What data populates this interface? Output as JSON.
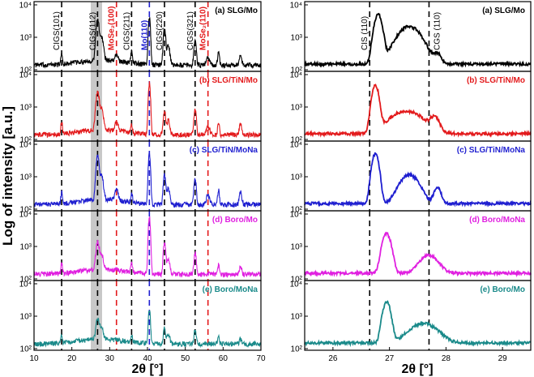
{
  "chart_data": [
    {
      "type": "line",
      "title": "",
      "xlabel": "2θ [°]",
      "ylabel": "Log of intensity [a.u.]",
      "xlim": [
        10,
        70
      ],
      "xticks": [
        "10",
        "20",
        "30",
        "40",
        "50",
        "60",
        "70"
      ],
      "yscale": "log",
      "ylim": [
        100,
        10000
      ],
      "yticks": [
        "10²",
        "10³",
        "10⁴"
      ],
      "shaded_region": [
        25,
        28
      ],
      "reference_lines": [
        {
          "x": 17.3,
          "label": "CIGS(101)",
          "color": "#000000"
        },
        {
          "x": 26.8,
          "label": "CIGS(112)",
          "color": "#000000"
        },
        {
          "x": 31.8,
          "label": "MoSe₂(100)",
          "color": "#e31a1c"
        },
        {
          "x": 35.8,
          "label": "CIGS(211)",
          "color": "#000000"
        },
        {
          "x": 40.5,
          "label": "Mo(110)",
          "color": "#1f1fd0"
        },
        {
          "x": 44.5,
          "label": "CIGS(220)",
          "color": "#000000"
        },
        {
          "x": 52.6,
          "label": "CIGS(321)",
          "color": "#000000"
        },
        {
          "x": 56.0,
          "label": "MoSe₂(110)",
          "color": "#e31a1c"
        }
      ],
      "series": [
        {
          "name": "(a) SLG/Mo",
          "color": "#000000",
          "peaks": [
            [
              17.3,
              180,
              0.25
            ],
            [
              26.8,
              3300,
              0.45
            ],
            [
              27.8,
              900,
              0.6
            ],
            [
              31.8,
              110,
              0.5
            ],
            [
              35.8,
              200,
              0.3
            ],
            [
              40.5,
              4000,
              0.3
            ],
            [
              44.5,
              1700,
              0.35
            ],
            [
              45.5,
              400,
              0.5
            ],
            [
              52.6,
              650,
              0.35
            ],
            [
              56.0,
              90,
              0.6
            ],
            [
              58.8,
              200,
              0.3
            ],
            [
              64.6,
              130,
              0.4
            ]
          ]
        },
        {
          "name": "(b) SLG/TiN/Mo",
          "color": "#e31a1c",
          "peaks": [
            [
              17.3,
              220,
              0.25
            ],
            [
              26.8,
              2600,
              0.5
            ],
            [
              27.8,
              700,
              0.6
            ],
            [
              31.8,
              150,
              0.6
            ],
            [
              35.8,
              130,
              0.3
            ],
            [
              40.5,
              5400,
              0.3
            ],
            [
              44.5,
              600,
              0.35
            ],
            [
              45.5,
              250,
              0.5
            ],
            [
              52.6,
              700,
              0.35
            ],
            [
              56.0,
              100,
              0.6
            ],
            [
              58.8,
              180,
              0.3
            ],
            [
              64.6,
              150,
              0.4
            ]
          ]
        },
        {
          "name": "(c) SLG/TiN/MoNa",
          "color": "#1f1fd0",
          "peaks": [
            [
              17.3,
              200,
              0.25
            ],
            [
              26.8,
              4000,
              0.45
            ],
            [
              27.8,
              900,
              0.6
            ],
            [
              31.8,
              200,
              0.6
            ],
            [
              35.8,
              150,
              0.3
            ],
            [
              40.5,
              5200,
              0.3
            ],
            [
              44.5,
              1000,
              0.35
            ],
            [
              45.5,
              300,
              0.5
            ],
            [
              52.6,
              700,
              0.35
            ],
            [
              56.0,
              120,
              0.6
            ],
            [
              58.8,
              250,
              0.3
            ],
            [
              64.6,
              200,
              0.4
            ]
          ]
        },
        {
          "name": "(d) Boro/Mo",
          "color": "#e020e0",
          "peaks": [
            [
              17.3,
              150,
              0.25
            ],
            [
              26.8,
              1200,
              0.5
            ],
            [
              27.8,
              400,
              0.6
            ],
            [
              35.8,
              120,
              0.3
            ],
            [
              40.5,
              8000,
              0.3
            ],
            [
              44.5,
              1200,
              0.35
            ],
            [
              45.5,
              300,
              0.5
            ],
            [
              52.6,
              500,
              0.35
            ],
            [
              58.8,
              130,
              0.3
            ],
            [
              64.6,
              100,
              0.4
            ]
          ]
        },
        {
          "name": "(e) Boro/MoNa",
          "color": "#1a8a8a",
          "peaks": [
            [
              17.3,
              100,
              0.25
            ],
            [
              26.8,
              600,
              0.5
            ],
            [
              27.8,
              300,
              0.6
            ],
            [
              35.8,
              90,
              0.3
            ],
            [
              40.5,
              1500,
              0.3
            ],
            [
              44.5,
              300,
              0.35
            ],
            [
              45.5,
              150,
              0.5
            ],
            [
              52.6,
              250,
              0.35
            ],
            [
              58.8,
              80,
              0.3
            ],
            [
              64.6,
              60,
              0.4
            ]
          ]
        }
      ]
    },
    {
      "type": "line",
      "title": "",
      "xlabel": "2θ [°]",
      "ylabel": "",
      "xlim": [
        25.5,
        29.5
      ],
      "xticks": [
        "26",
        "27",
        "28",
        "29"
      ],
      "yscale": "log",
      "ylim": [
        100,
        10000
      ],
      "yticks": [
        "10²",
        "10³",
        "10⁴"
      ],
      "reference_lines": [
        {
          "x": 26.65,
          "label": "CIS (110)",
          "color": "#000000"
        },
        {
          "x": 27.7,
          "label": "CGS (110)",
          "color": "#000000"
        }
      ],
      "series": [
        {
          "name": "(a) SLG/Mo",
          "color": "#000000",
          "peaks": [
            [
              26.8,
              5000,
              0.08
            ],
            [
              27.35,
              2000,
              0.25
            ],
            [
              27.85,
              150,
              0.08
            ]
          ]
        },
        {
          "name": "(b) SLG/TiN/Mo",
          "color": "#e31a1c",
          "peaks": [
            [
              26.75,
              4500,
              0.07
            ],
            [
              27.3,
              600,
              0.35
            ],
            [
              27.8,
              300,
              0.1
            ]
          ]
        },
        {
          "name": "(c) SLG/TiN/MoNa",
          "color": "#1f1fd0",
          "peaks": [
            [
              26.75,
              5000,
              0.07
            ],
            [
              27.35,
              1000,
              0.2
            ],
            [
              27.85,
              300,
              0.08
            ]
          ]
        },
        {
          "name": "(d) Boro/MoNa",
          "color": "#e020e0",
          "peaks": [
            [
              26.95,
              2300,
              0.09
            ],
            [
              27.7,
              380,
              0.2
            ]
          ]
        },
        {
          "name": "(e) Boro/Mo",
          "color": "#1a8a8a",
          "peaks": [
            [
              26.95,
              2600,
              0.08
            ],
            [
              27.6,
              450,
              0.3
            ]
          ]
        }
      ]
    }
  ]
}
